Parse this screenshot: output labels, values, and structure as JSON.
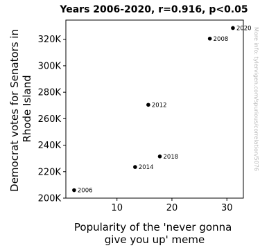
{
  "chart_data": {
    "type": "scatter",
    "title": "Years 2006-2020, r=0.916, p<0.05",
    "xlabel_lines": [
      "Popularity of the 'never gonna",
      "give you up' meme"
    ],
    "ylabel_lines": [
      "Democrat votes for Senators in",
      "Rhode Island"
    ],
    "xlim": [
      0.7,
      33
    ],
    "ylim": [
      200000,
      334500
    ],
    "x_ticks": [
      10,
      20,
      30
    ],
    "x_tick_labels": [
      "10",
      "20",
      "30"
    ],
    "y_ticks": [
      200000,
      220000,
      240000,
      260000,
      280000,
      300000,
      320000
    ],
    "y_tick_labels": [
      "200K",
      "220K",
      "240K",
      "260K",
      "280K",
      "300K",
      "320K"
    ],
    "grid": false,
    "points": [
      {
        "label": "2006",
        "x": 2.2,
        "y": 206000
      },
      {
        "label": "2008",
        "x": 26.9,
        "y": 320500
      },
      {
        "label": "2012",
        "x": 15.7,
        "y": 270500
      },
      {
        "label": "2014",
        "x": 13.3,
        "y": 223500
      },
      {
        "label": "2018",
        "x": 17.8,
        "y": 231500
      },
      {
        "label": "2020",
        "x": 31.1,
        "y": 328500
      }
    ],
    "point_color": "#000000"
  },
  "watermark": "More info: tylervigen.com/spurious/correlation/5076"
}
